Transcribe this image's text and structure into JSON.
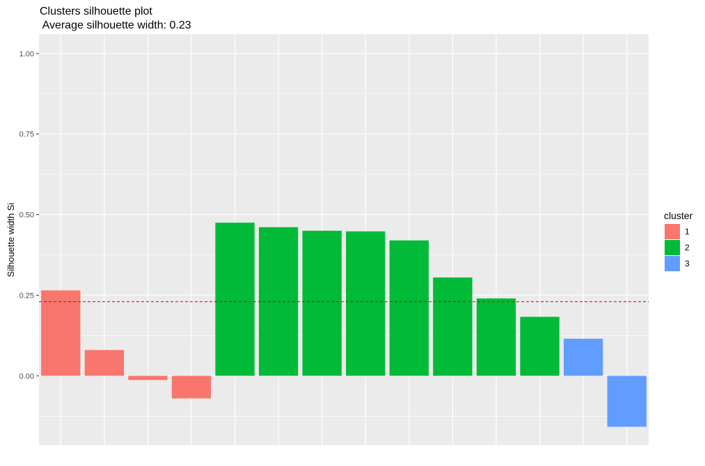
{
  "chart_data": {
    "type": "bar",
    "title": "Clusters silhouette plot",
    "subtitle": " Average silhouette width: 0.23",
    "xlabel": "",
    "ylabel": "Silhouette width Si",
    "ylim": [
      -0.215,
      1.06
    ],
    "yticks": [
      0.0,
      0.25,
      0.5,
      0.75,
      1.0
    ],
    "ytick_labels": [
      "0.00",
      "0.25",
      "0.50",
      "0.75",
      "1.00"
    ],
    "average_line": 0.23,
    "grid": true,
    "legend": {
      "title": "cluster",
      "position": "right",
      "entries": [
        {
          "label": "1",
          "color": "#F8766D"
        },
        {
          "label": "2",
          "color": "#00BA38"
        },
        {
          "label": "3",
          "color": "#619CFF"
        }
      ]
    },
    "bars": [
      {
        "cluster": "1",
        "value": 0.265
      },
      {
        "cluster": "1",
        "value": 0.08
      },
      {
        "cluster": "1",
        "value": -0.013
      },
      {
        "cluster": "1",
        "value": -0.07
      },
      {
        "cluster": "2",
        "value": 0.475
      },
      {
        "cluster": "2",
        "value": 0.461
      },
      {
        "cluster": "2",
        "value": 0.45
      },
      {
        "cluster": "2",
        "value": 0.448
      },
      {
        "cluster": "2",
        "value": 0.42
      },
      {
        "cluster": "2",
        "value": 0.305
      },
      {
        "cluster": "2",
        "value": 0.24
      },
      {
        "cluster": "2",
        "value": 0.183
      },
      {
        "cluster": "3",
        "value": 0.115
      },
      {
        "cluster": "3",
        "value": -0.158
      }
    ],
    "colors": {
      "panel_bg": "#EBEBEB",
      "grid": "#FFFFFF",
      "avg_line": "#CC0000"
    }
  }
}
